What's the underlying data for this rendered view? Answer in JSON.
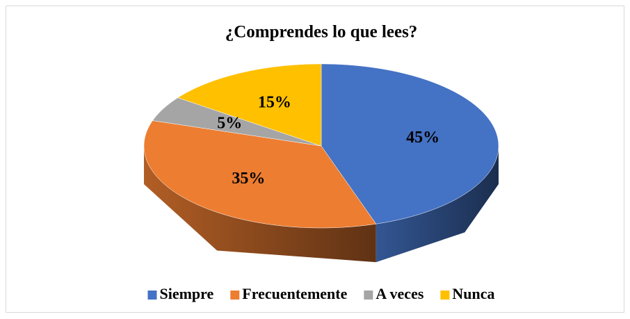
{
  "chart_data": {
    "type": "pie3d",
    "title": "¿Comprendes lo que lees?",
    "categories": [
      "Siempre",
      "Frecuentemente",
      "A veces",
      "Nunca"
    ],
    "values": [
      45,
      35,
      5,
      15
    ],
    "value_labels": [
      "45%",
      "35%",
      "5%",
      "15%"
    ],
    "colors": [
      "#4472c4",
      "#ed7d31",
      "#a5a5a5",
      "#ffc000"
    ],
    "legend": "bottom"
  }
}
